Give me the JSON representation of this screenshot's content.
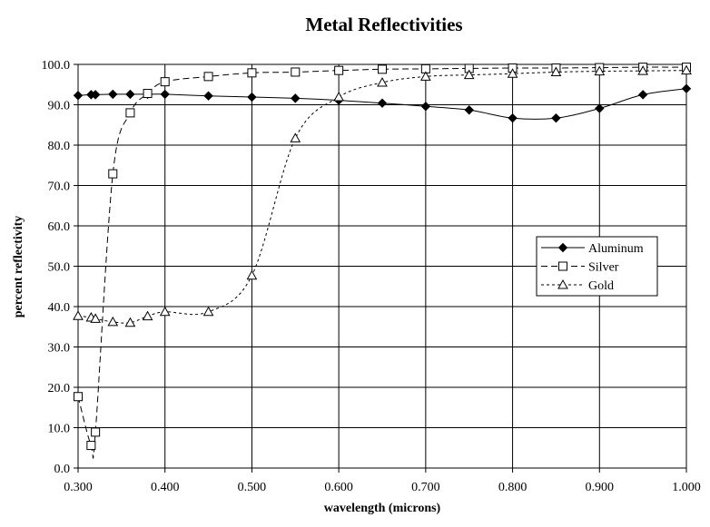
{
  "chart_data": {
    "type": "line",
    "title": "Metal Reflectivities",
    "xlabel": "wavelength (microns)",
    "ylabel": "percent reflectivity",
    "xlim": [
      0.3,
      1.0
    ],
    "ylim": [
      0,
      100
    ],
    "x_ticks": [
      "0.300",
      "0.400",
      "0.500",
      "0.600",
      "0.700",
      "0.800",
      "0.900",
      "1.000"
    ],
    "y_ticks": [
      "0.0",
      "10.0",
      "20.0",
      "30.0",
      "40.0",
      "50.0",
      "60.0",
      "70.0",
      "80.0",
      "90.0",
      "100.0"
    ],
    "grid": "vertical and horizontal major gridlines",
    "legend_position": "right",
    "series": [
      {
        "name": "Aluminum",
        "line_style": "solid",
        "marker": "filled-diamond",
        "color": "#000000",
        "x": [
          0.3,
          0.315,
          0.32,
          0.34,
          0.36,
          0.38,
          0.4,
          0.45,
          0.5,
          0.55,
          0.6,
          0.65,
          0.7,
          0.75,
          0.8,
          0.85,
          0.9,
          0.95,
          1.0
        ],
        "y": [
          92.3,
          92.5,
          92.5,
          92.6,
          92.6,
          92.6,
          92.6,
          92.2,
          91.9,
          91.6,
          91.1,
          90.4,
          89.6,
          88.7,
          86.7,
          86.7,
          89.1,
          92.5,
          94.0
        ]
      },
      {
        "name": "Silver",
        "line_style": "dashed",
        "marker": "open-square",
        "color": "#000000",
        "x": [
          0.3,
          0.315,
          0.32,
          0.34,
          0.36,
          0.38,
          0.4,
          0.45,
          0.5,
          0.55,
          0.6,
          0.65,
          0.7,
          0.75,
          0.8,
          0.85,
          0.9,
          0.95,
          1.0
        ],
        "y": [
          17.7,
          5.6,
          8.9,
          72.9,
          88.0,
          92.8,
          95.7,
          97.0,
          97.9,
          98.1,
          98.5,
          98.8,
          98.9,
          99.0,
          99.1,
          99.1,
          99.2,
          99.3,
          99.3
        ]
      },
      {
        "name": "Gold",
        "line_style": "dotted",
        "marker": "open-triangle",
        "color": "#000000",
        "x": [
          0.3,
          0.315,
          0.32,
          0.34,
          0.36,
          0.38,
          0.4,
          0.45,
          0.5,
          0.55,
          0.6,
          0.65,
          0.7,
          0.75,
          0.8,
          0.85,
          0.9,
          0.95,
          1.0
        ],
        "y": [
          37.7,
          37.3,
          37.0,
          36.2,
          36.0,
          37.6,
          38.7,
          38.7,
          47.7,
          81.7,
          91.9,
          95.5,
          97.0,
          97.4,
          97.7,
          98.1,
          98.3,
          98.4,
          98.5
        ]
      }
    ]
  }
}
